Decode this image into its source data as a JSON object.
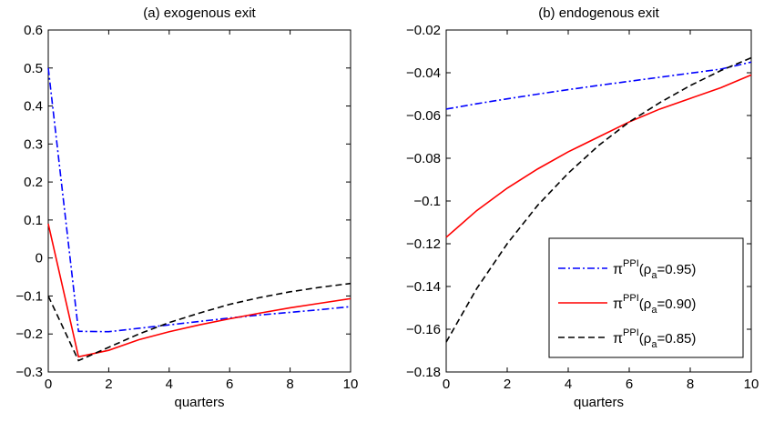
{
  "chart_data": [
    {
      "type": "line",
      "title": "(a) exogenous exit",
      "xlabel": "quarters",
      "ylabel": "",
      "xlim": [
        0,
        10
      ],
      "ylim": [
        -0.3,
        0.6
      ],
      "xticks": [
        0,
        2,
        4,
        6,
        8,
        10
      ],
      "xtick_labels": [
        "0",
        "2",
        "4",
        "6",
        "8",
        "10"
      ],
      "yticks": [
        -0.3,
        -0.2,
        -0.1,
        0,
        0.1,
        0.2,
        0.3,
        0.4,
        0.5,
        0.6
      ],
      "ytick_labels": [
        "−0.3",
        "−0.2",
        "−0.1",
        "0",
        "0.1",
        "0.2",
        "0.3",
        "0.4",
        "0.5",
        "0.6"
      ],
      "grid": false,
      "x": [
        0,
        1,
        2,
        3,
        4,
        5,
        6,
        7,
        8,
        9,
        10
      ],
      "series": [
        {
          "label": "pa=0.95",
          "color": "#0000ff",
          "dash": "dashdot",
          "values": [
            0.5,
            -0.193,
            -0.194,
            -0.185,
            -0.176,
            -0.167,
            -0.158,
            -0.15,
            -0.143,
            -0.136,
            -0.128
          ]
        },
        {
          "label": "pa=0.90",
          "color": "#ff0000",
          "dash": "solid",
          "values": [
            0.09,
            -0.26,
            -0.243,
            -0.215,
            -0.194,
            -0.176,
            -0.16,
            -0.145,
            -0.131,
            -0.119,
            -0.107
          ]
        },
        {
          "label": "pa=0.85",
          "color": "#000000",
          "dash": "dashed",
          "values": [
            -0.1,
            -0.27,
            -0.235,
            -0.2,
            -0.17,
            -0.145,
            -0.122,
            -0.104,
            -0.089,
            -0.077,
            -0.067
          ]
        }
      ]
    },
    {
      "type": "line",
      "title": "(b) endogenous exit",
      "xlabel": "quarters",
      "ylabel": "",
      "xlim": [
        0,
        10
      ],
      "ylim": [
        -0.18,
        -0.02
      ],
      "xticks": [
        0,
        2,
        4,
        6,
        8,
        10
      ],
      "xtick_labels": [
        "0",
        "2",
        "4",
        "6",
        "8",
        "10"
      ],
      "yticks": [
        -0.18,
        -0.16,
        -0.14,
        -0.12,
        -0.1,
        -0.08,
        -0.06,
        -0.04,
        -0.02
      ],
      "ytick_labels": [
        "−0.18",
        "−0.16",
        "−0.14",
        "−0.12",
        "−0.1",
        "−0.08",
        "−0.06",
        "−0.04",
        "−0.02"
      ],
      "grid": false,
      "legend_position": "bottom-right",
      "x": [
        0,
        1,
        2,
        3,
        4,
        5,
        6,
        7,
        8,
        9,
        10
      ],
      "series": [
        {
          "label": "pa=0.95",
          "color": "#0000ff",
          "dash": "dashdot",
          "values": [
            -0.057,
            -0.0545,
            -0.0522,
            -0.05,
            -0.0479,
            -0.0459,
            -0.044,
            -0.0421,
            -0.0402,
            -0.0383,
            -0.035
          ]
        },
        {
          "label": "pa=0.90",
          "color": "#ff0000",
          "dash": "solid",
          "values": [
            -0.117,
            -0.1045,
            -0.094,
            -0.085,
            -0.077,
            -0.07,
            -0.063,
            -0.057,
            -0.052,
            -0.047,
            -0.041
          ]
        },
        {
          "label": "pa=0.85",
          "color": "#000000",
          "dash": "dashed",
          "values": [
            -0.166,
            -0.141,
            -0.12,
            -0.102,
            -0.087,
            -0.074,
            -0.063,
            -0.054,
            -0.046,
            -0.039,
            -0.033
          ]
        }
      ]
    }
  ],
  "legend": {
    "entries": [
      {
        "symbol": "π",
        "superscript": "PPI",
        "open": "(ρ",
        "subscript": "a",
        "value": "=0.95)",
        "color": "#0000ff",
        "dash": "dashdot"
      },
      {
        "symbol": "π",
        "superscript": "PPI",
        "open": "(ρ",
        "subscript": "a",
        "value": "=0.90)",
        "color": "#ff0000",
        "dash": "solid"
      },
      {
        "symbol": "π",
        "superscript": "PPI",
        "open": "(ρ",
        "subscript": "a",
        "value": "=0.85)",
        "color": "#000000",
        "dash": "dashed"
      }
    ]
  }
}
